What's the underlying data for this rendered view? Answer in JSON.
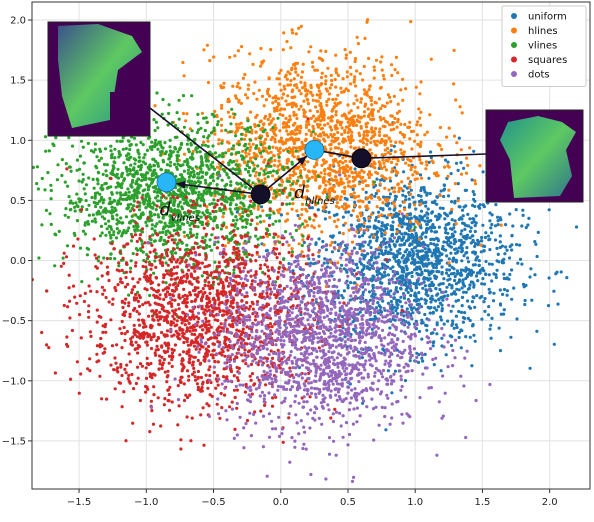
{
  "chart_data": {
    "type": "scatter",
    "title": "",
    "xlabel": "",
    "ylabel": "",
    "xlim": [
      -1.85,
      2.3
    ],
    "ylim": [
      -1.9,
      2.15
    ],
    "x_ticks": [
      -1.5,
      -1.0,
      -0.5,
      0.0,
      0.5,
      1.0,
      1.5,
      2.0
    ],
    "y_ticks": [
      -1.5,
      -1.0,
      -0.5,
      0.0,
      0.5,
      1.0,
      1.5,
      2.0
    ],
    "x_tick_labels": [
      "−1.5",
      "−1.0",
      "−0.5",
      "0.0",
      "0.5",
      "1.0",
      "1.5",
      "2.0"
    ],
    "y_tick_labels": [
      "−1.5",
      "−1.0",
      "−0.5",
      "0.0",
      "0.5",
      "1.0",
      "1.5",
      "2.0"
    ],
    "grid": true,
    "legend_position": "top-right",
    "series": [
      {
        "name": "uniform",
        "color": "#1f77b4",
        "center": [
          1.0,
          0.0
        ],
        "spread": [
          0.38,
          0.35
        ]
      },
      {
        "name": "hlines",
        "color": "#ff7f0e",
        "center": [
          0.3,
          0.95
        ],
        "spread": [
          0.42,
          0.38
        ]
      },
      {
        "name": "vlines",
        "color": "#2ca02c",
        "center": [
          -0.8,
          0.55
        ],
        "spread": [
          0.42,
          0.3
        ]
      },
      {
        "name": "squares",
        "color": "#d62728",
        "center": [
          -0.6,
          -0.45
        ],
        "spread": [
          0.42,
          0.38
        ]
      },
      {
        "name": "dots",
        "color": "#9467bd",
        "center": [
          0.3,
          -0.65
        ],
        "spread": [
          0.38,
          0.38
        ]
      }
    ],
    "markers": [
      {
        "kind": "cyan",
        "x": -0.85,
        "y": 0.65,
        "color": "#29b6f6"
      },
      {
        "kind": "dark",
        "x": -0.15,
        "y": 0.55,
        "color": "#14102a"
      },
      {
        "kind": "cyan",
        "x": 0.25,
        "y": 0.92,
        "color": "#29b6f6"
      },
      {
        "kind": "dark",
        "x": 0.6,
        "y": 0.85,
        "color": "#14102a"
      }
    ],
    "annotations": [
      {
        "main": "d",
        "sub": "vlines",
        "x": -0.9,
        "y": 0.38
      },
      {
        "main": "d",
        "sub": "hlines",
        "x": 0.1,
        "y": 0.52
      }
    ]
  }
}
